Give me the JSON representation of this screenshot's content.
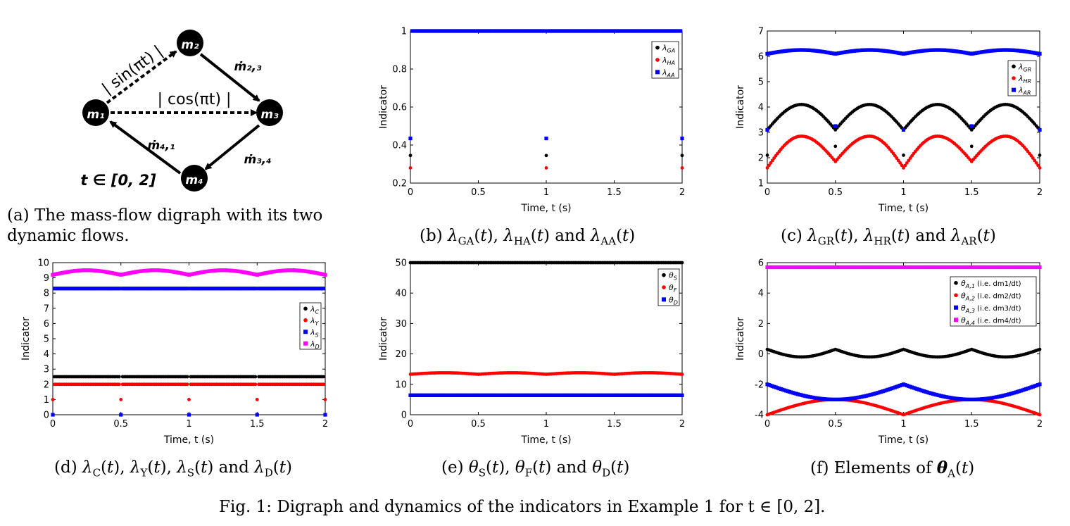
{
  "figure_caption": "Fig. 1: Digraph and dynamics of the indicators in Example 1 for t ∈ [0, 2].",
  "panel_a": {
    "caption": "(a) The mass-flow digraph with its two dynamic flows.",
    "caption_line1": "(a) The mass-flow digraph with its two",
    "caption_line2": "dynamic flows.",
    "nodes": [
      {
        "id": "m1",
        "label": "m₁"
      },
      {
        "id": "m2",
        "label": "m₂"
      },
      {
        "id": "m3",
        "label": "m₃"
      },
      {
        "id": "m4",
        "label": "m₄"
      }
    ],
    "edges": [
      {
        "from": "m1",
        "to": "m2",
        "label": "| sin(πt) |",
        "style": "dashed"
      },
      {
        "from": "m1",
        "to": "m3",
        "label": "| cos(πt) |",
        "style": "dashed"
      },
      {
        "from": "m2",
        "to": "m3",
        "label": "ṁ₂,₃",
        "style": "solid"
      },
      {
        "from": "m3",
        "to": "m4",
        "label": "ṁ₃,₄",
        "style": "solid"
      },
      {
        "from": "m4",
        "to": "m1",
        "label": "ṁ₄,₁",
        "style": "solid"
      }
    ],
    "time_label": "t ∈ [0, 2]"
  },
  "chart_data": [
    {
      "id": "b",
      "type": "scatter",
      "caption": "(b) λGA(t), λHA(t) and λAA(t)",
      "xlabel": "Time, t (s)",
      "ylabel": "Indicator",
      "xlim": [
        0,
        2
      ],
      "ylim": [
        0.2,
        1
      ],
      "xticks": [
        "0",
        "0.5",
        "1",
        "1.5",
        "2"
      ],
      "yticks": [
        "0.2",
        "0.4",
        "0.6",
        "0.8",
        "1"
      ],
      "legend_position": "top-right",
      "series": [
        {
          "name": "λGA",
          "color": "#000000",
          "description": "1 everywhere except 0.345 at t = 0, 1, 2"
        },
        {
          "name": "λHA",
          "color": "#ff0000",
          "description": "1 everywhere except 0.28 at t = 0, 1, 2"
        },
        {
          "name": "λAA",
          "color": "#0000ff",
          "description": "1 everywhere except 0.435 at t = 0, 1, 2"
        }
      ],
      "special_points": {
        "x": [
          0,
          1,
          2
        ],
        "λGA": 0.345,
        "λHA": 0.28,
        "λAA": 0.435
      }
    },
    {
      "id": "c",
      "type": "scatter",
      "caption": "(c) λGR(t), λHR(t) and λAR(t)",
      "xlabel": "Time, t (s)",
      "ylabel": "Indicator",
      "xlim": [
        0,
        2
      ],
      "ylim": [
        1,
        7
      ],
      "xticks": [
        "0",
        "0.5",
        "1",
        "1.5",
        "2"
      ],
      "yticks": [
        "1",
        "2",
        "3",
        "4",
        "5",
        "6",
        "7"
      ],
      "legend_position": "top-right",
      "series": [
        {
          "name": "λGR",
          "color": "#000000",
          "description": "arches from 3.1 (t = 0, 0.5, 1, 1.5, 2) to peak 4.1 (t = 0.25, 0.75, 1.25, 1.75); isolated points 2.1 at t = 0, 1, 2 and 2.45 at t = 0.5, 1.5"
        },
        {
          "name": "λHR",
          "color": "#ff0000",
          "description": "arches from 1.6 (t = 0, 1, 2) and 1.85 (t = 0.5, 1.5) to peak 2.85"
        },
        {
          "name": "λAR",
          "color": "#0000ff",
          "description": "wave between 6.1 and 6.25; isolated points 3.1 at t = 0, 1, 2 and 3.25 at t = 0.5, 1.5"
        }
      ]
    },
    {
      "id": "d",
      "type": "scatter",
      "caption": "(d) λC(t), λY(t), λS(t) and λD(t)",
      "xlabel": "Time, t (s)",
      "ylabel": "Indicator",
      "xlim": [
        0,
        2
      ],
      "ylim": [
        0,
        10
      ],
      "xticks": [
        "0",
        "0.5",
        "1",
        "1.5",
        "2"
      ],
      "yticks": [
        "0",
        "1",
        "2",
        "3",
        "4",
        "5",
        "6",
        "7",
        "8",
        "9",
        "10"
      ],
      "legend_position": "middle-right",
      "series": [
        {
          "name": "λC",
          "color": "#000000",
          "description": "constant 2.5 (0 at t = 0, 0.5, 1, 1.5, 2)"
        },
        {
          "name": "λY",
          "color": "#ff0000",
          "description": "constant 2.0 (1 at t = 0, 0.5, 1, 1.5, 2)"
        },
        {
          "name": "λS",
          "color": "#0000ff",
          "description": "constant 8.3 (0 at t = 0, 0.5, 1, 1.5, 2)"
        },
        {
          "name": "λD",
          "color": "#ff00ff",
          "description": "wave between 9.2 and 9.5"
        }
      ]
    },
    {
      "id": "e",
      "type": "scatter",
      "caption": "(e) θS(t), θF(t) and θD(t)",
      "xlabel": "Time, t (s)",
      "ylabel": "Indicator",
      "xlim": [
        0,
        2
      ],
      "ylim": [
        0,
        50
      ],
      "xticks": [
        "0",
        "0.5",
        "1",
        "1.5",
        "2"
      ],
      "yticks": [
        "0",
        "10",
        "20",
        "30",
        "40",
        "50"
      ],
      "legend_position": "top-right",
      "series": [
        {
          "name": "θS",
          "color": "#000000",
          "description": "constant 50"
        },
        {
          "name": "θF",
          "color": "#ff0000",
          "description": "wave between 13.3 and 13.8"
        },
        {
          "name": "θD",
          "color": "#0000ff",
          "description": "constant 6.4"
        }
      ]
    },
    {
      "id": "f",
      "type": "scatter",
      "caption": "(f) Elements of θA(t)",
      "xlabel": "Time, t (s)",
      "ylabel": "Indicator",
      "xlim": [
        0,
        2
      ],
      "ylim": [
        -4,
        6
      ],
      "xticks": [
        "0",
        "0.5",
        "1",
        "1.5",
        "2"
      ],
      "yticks": [
        "-4",
        "-2",
        "0",
        "2",
        "4",
        "6"
      ],
      "legend_position": "top-right",
      "series": [
        {
          "name": "θA,1 (i.e. dm1/dt)",
          "color": "#000000",
          "description": "wave between -0.2 and 0.3 (peaks at t = 0, 0.5, 1, 1.5, 2)"
        },
        {
          "name": "θA,2 (i.e. dm2/dt)",
          "color": "#ff0000",
          "description": "arches from -4 (t = 0, 1, 2) to -3 (t = 0.5, 1.5)"
        },
        {
          "name": "θA,3 (i.e. dm3/dt)",
          "color": "#0000ff",
          "description": "arches from -3 (t = 0.5, 1.5) to -2 (t = 0, 1, 2)"
        },
        {
          "name": "θA,4 (i.e. dm4/dt)",
          "color": "#ff00ff",
          "description": "constant 5.7"
        }
      ]
    }
  ]
}
